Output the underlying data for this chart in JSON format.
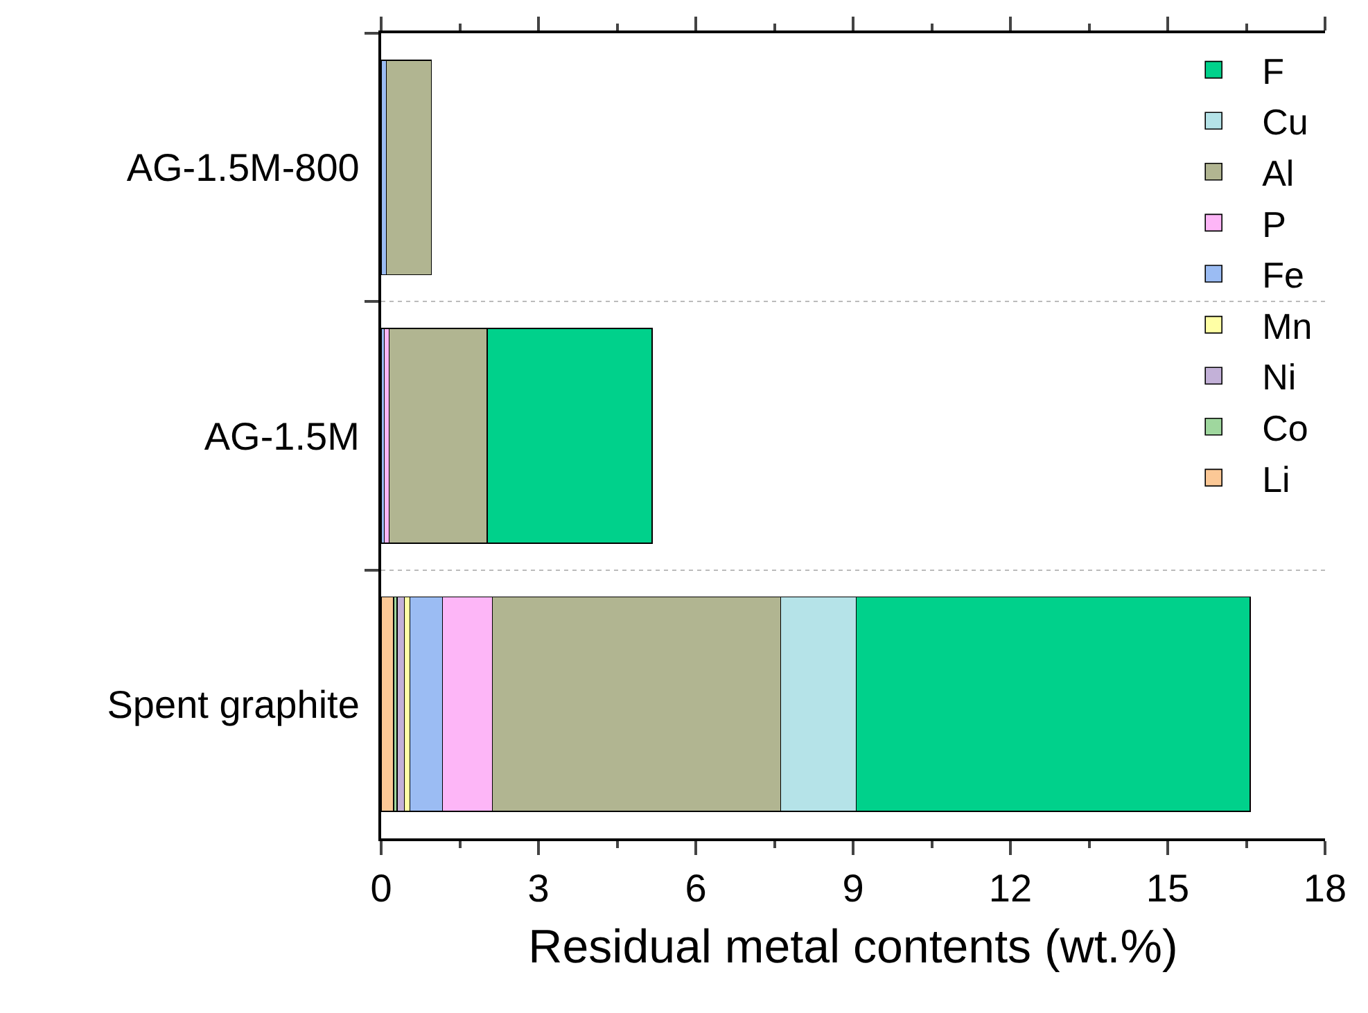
{
  "chart_data": {
    "type": "bar",
    "orientation": "horizontal",
    "stacked": true,
    "categories": [
      "AG-1.5M-800",
      "AG-1.5M",
      "Spent graphite"
    ],
    "xlabel": "Residual metal contents (wt.%)",
    "xlim": [
      0,
      18
    ],
    "xticks": [
      0,
      3,
      6,
      9,
      12,
      15,
      18
    ],
    "grid": "y",
    "legend": "top right",
    "series": [
      {
        "name": "Li",
        "color": "#fbc896",
        "values": [
          null,
          null,
          0.24
        ]
      },
      {
        "name": "Co",
        "color": "#9fd79e",
        "values": [
          null,
          null,
          0.06
        ]
      },
      {
        "name": "Ni",
        "color": "#c3b1d8",
        "values": [
          null,
          null,
          0.14
        ]
      },
      {
        "name": "Mn",
        "color": "#ffffa5",
        "values": [
          null,
          null,
          0.11
        ]
      },
      {
        "name": "Fe",
        "color": "#9bbcf3",
        "values": [
          0.1,
          0.06,
          0.62
        ]
      },
      {
        "name": "P",
        "color": "#fdb6f7",
        "values": [
          null,
          0.09,
          0.95
        ]
      },
      {
        "name": "Al",
        "color": "#b1b591",
        "values": [
          0.86,
          1.87,
          5.5
        ]
      },
      {
        "name": "Cu",
        "color": "#b5e3e8",
        "values": [
          null,
          null,
          1.44
        ]
      },
      {
        "name": "F",
        "color": "#00d18b",
        "values": [
          null,
          3.15,
          7.51
        ]
      }
    ]
  }
}
